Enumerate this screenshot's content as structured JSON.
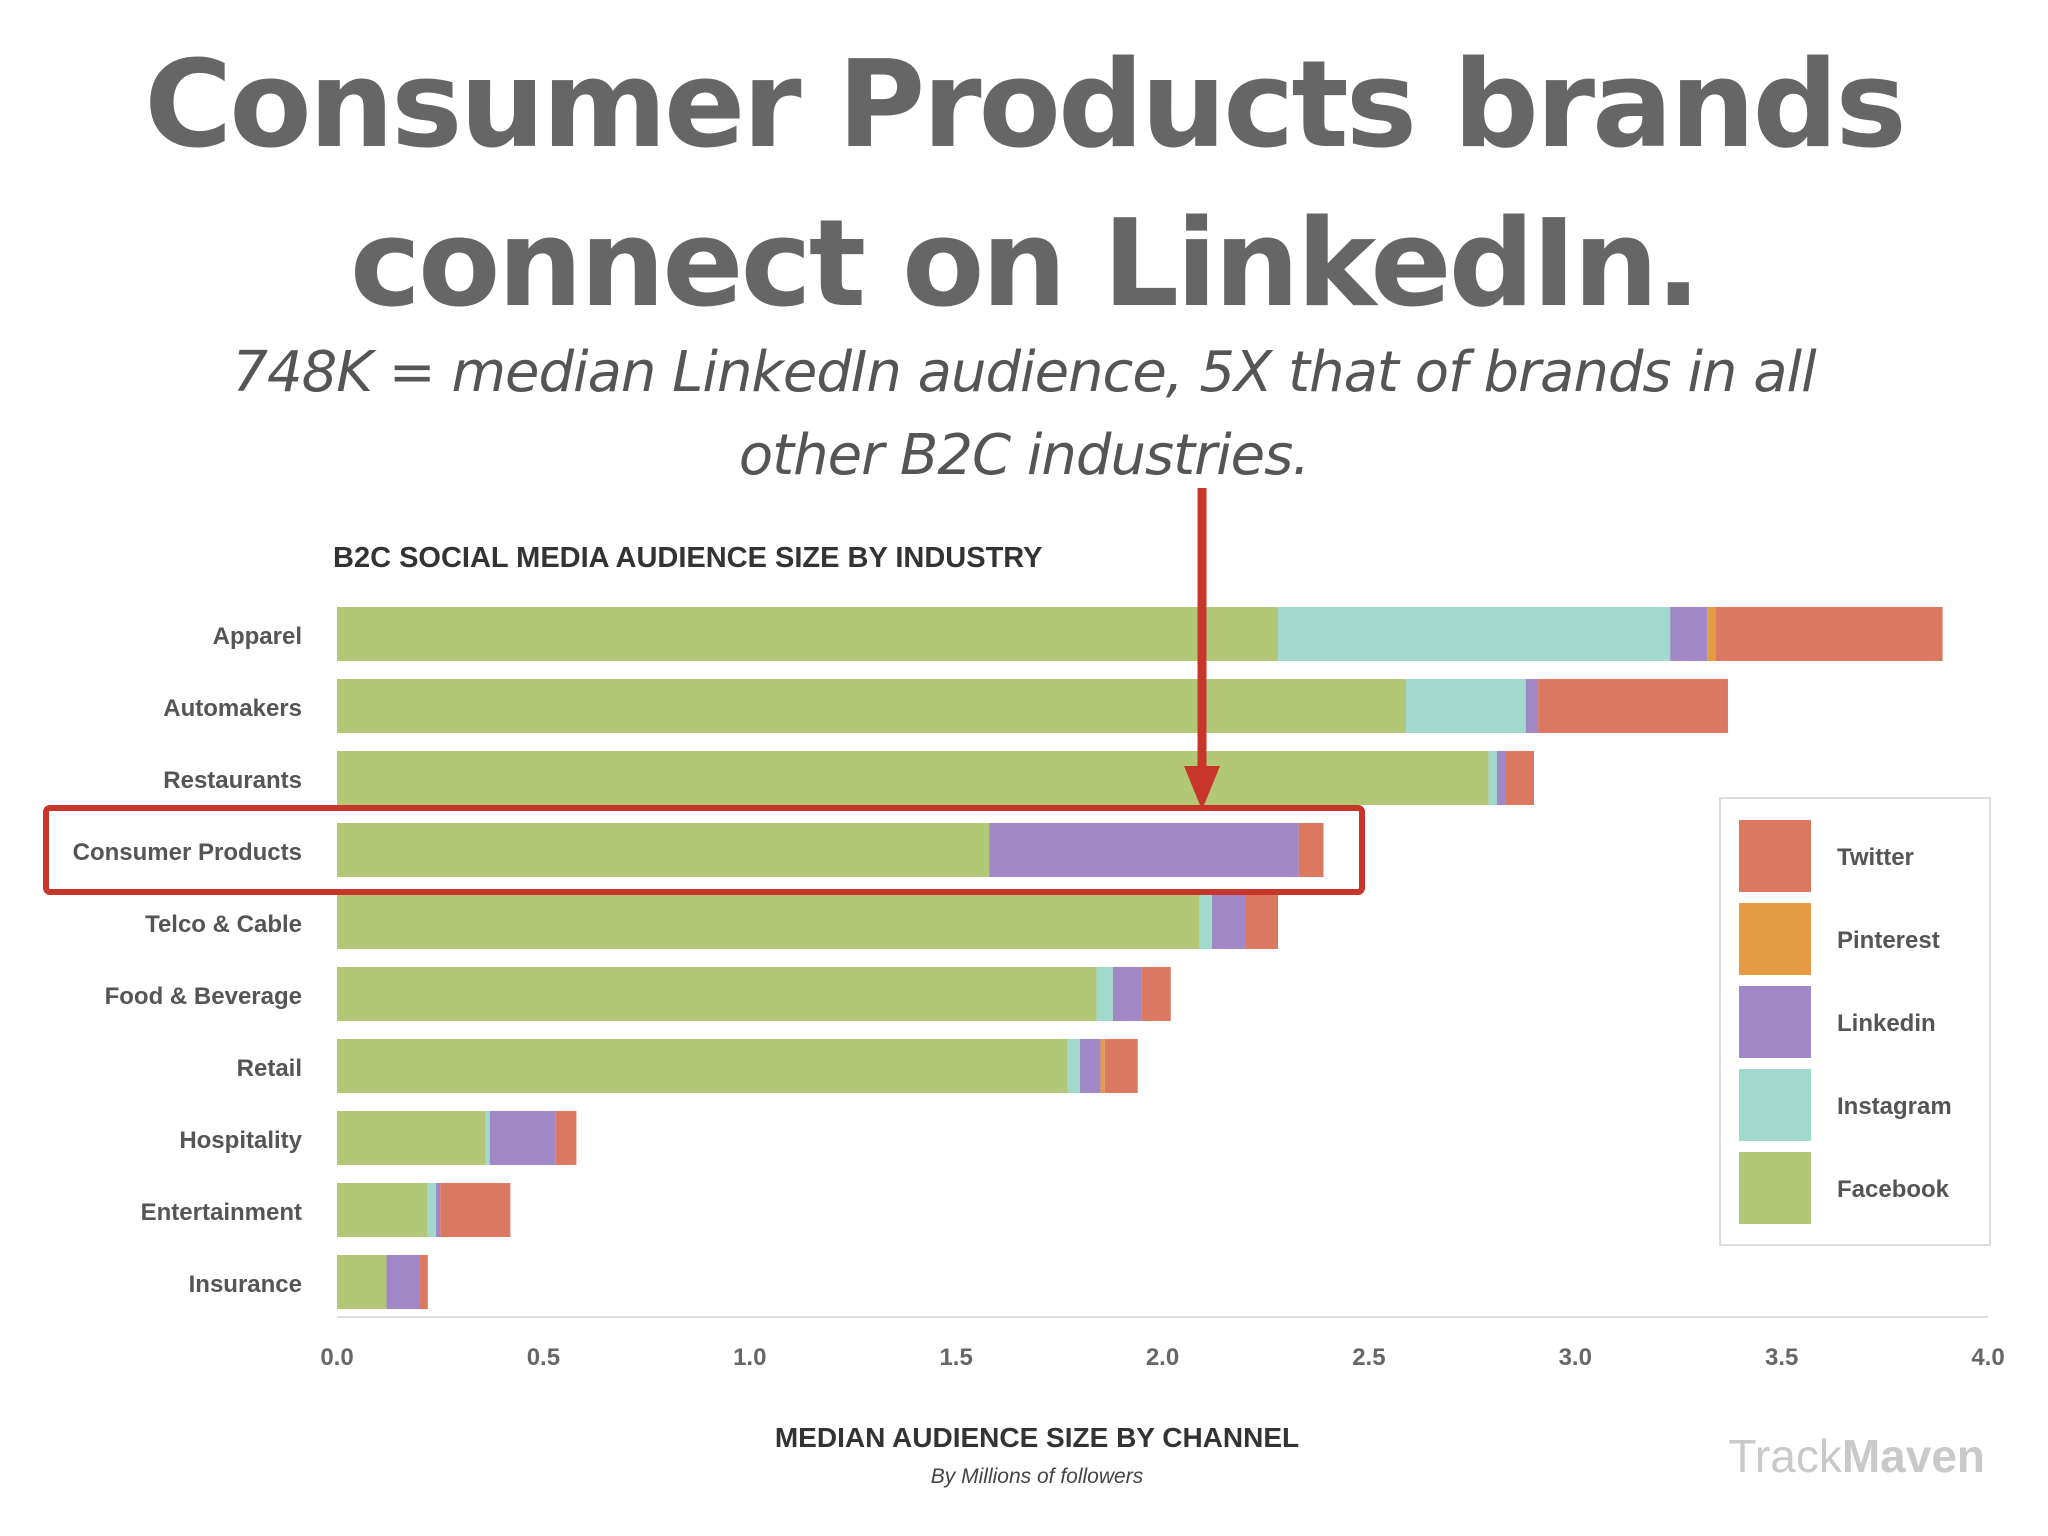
{
  "headline": {
    "line1": "Consumer Products brands",
    "line2": "connect on LinkedIn."
  },
  "subheadline": {
    "line1": "748K = median LinkedIn audience, 5X that of brands in all",
    "line2": "other B2C industries."
  },
  "colors": {
    "Facebook": "#b2c876",
    "Instagram": "#a1d9cc",
    "Linkedin": "#a088c6",
    "Pinterest": "#e59b44",
    "Twitter": "#db7861",
    "highlight": "#c8352b",
    "text": "#555555"
  },
  "highlight_category": "Consumer Products",
  "watermark": {
    "part1": "Track",
    "part2": "Maven"
  },
  "chart_data": {
    "type": "bar",
    "orientation": "horizontal",
    "stacked": true,
    "title": "B2C SOCIAL MEDIA AUDIENCE SIZE BY INDUSTRY",
    "xlabel": "MEDIAN AUDIENCE SIZE BY CHANNEL",
    "xlabel_sub": "By Millions of followers",
    "ylabel": "",
    "xlim": [
      0,
      4.0
    ],
    "xticks": [
      "0.0",
      "0.5",
      "1.0",
      "1.5",
      "2.0",
      "2.5",
      "3.0",
      "3.5",
      "4.0"
    ],
    "categories": [
      "Apparel",
      "Automakers",
      "Restaurants",
      "Consumer Products",
      "Telco & Cable",
      "Food & Beverage",
      "Retail",
      "Hospitality",
      "Entertainment",
      "Insurance"
    ],
    "series": [
      {
        "name": "Facebook",
        "values": [
          2.28,
          2.59,
          2.79,
          1.58,
          2.09,
          1.84,
          1.77,
          0.36,
          0.22,
          0.12
        ]
      },
      {
        "name": "Instagram",
        "values": [
          0.95,
          0.29,
          0.02,
          0.0,
          0.03,
          0.04,
          0.03,
          0.01,
          0.02,
          0.0
        ]
      },
      {
        "name": "Linkedin",
        "values": [
          0.09,
          0.03,
          0.02,
          0.75,
          0.08,
          0.07,
          0.05,
          0.16,
          0.01,
          0.08
        ]
      },
      {
        "name": "Pinterest",
        "values": [
          0.02,
          0.0,
          0.0,
          0.0,
          0.0,
          0.0,
          0.01,
          0.0,
          0.0,
          0.0
        ]
      },
      {
        "name": "Twitter",
        "values": [
          0.55,
          0.46,
          0.07,
          0.06,
          0.08,
          0.07,
          0.08,
          0.05,
          0.17,
          0.02
        ]
      }
    ],
    "legend": {
      "position": "right",
      "order": [
        "Twitter",
        "Pinterest",
        "Linkedin",
        "Instagram",
        "Facebook"
      ]
    },
    "grid": false
  }
}
